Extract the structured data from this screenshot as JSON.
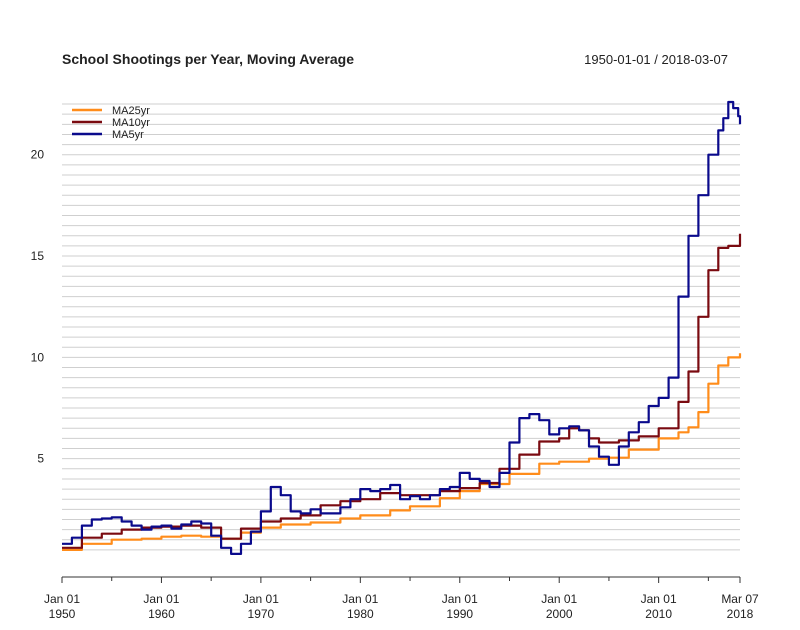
{
  "chart_data": {
    "type": "line",
    "title": "School Shootings per Year, Moving Average",
    "date_range": "1950-01-01 / 2018-03-07",
    "xlabel": "",
    "ylabel": "",
    "x_ticks": [
      {
        "year": 1950.0,
        "line1": "Jan 01",
        "line2": "1950"
      },
      {
        "year": 1960.0,
        "line1": "Jan 01",
        "line2": "1960"
      },
      {
        "year": 1970.0,
        "line1": "Jan 01",
        "line2": "1970"
      },
      {
        "year": 1980.0,
        "line1": "Jan 01",
        "line2": "1980"
      },
      {
        "year": 1990.0,
        "line1": "Jan 01",
        "line2": "1990"
      },
      {
        "year": 2000.0,
        "line1": "Jan 01",
        "line2": "2000"
      },
      {
        "year": 2010.0,
        "line1": "Jan 01",
        "line2": "2010"
      },
      {
        "year": 2018.18,
        "line1": "Mar 07",
        "line2": "2018"
      }
    ],
    "x_minor_ticks": [
      1955,
      1965,
      1975,
      1985,
      1995,
      2005,
      2015
    ],
    "y_ticks": [
      5,
      10,
      15,
      20
    ],
    "xlim": [
      1950.0,
      2018.18
    ],
    "ylim": [
      0.0,
      22.7
    ],
    "grid": true,
    "legend_position": "top-left",
    "series": [
      {
        "name": "MA25yr",
        "color": "#ff8c1a",
        "x": [
          1950.0,
          1952.0,
          1955.0,
          1958.0,
          1960.0,
          1962.0,
          1964.0,
          1966.0,
          1968.0,
          1970.0,
          1972.0,
          1975.0,
          1978.0,
          1980.0,
          1983.0,
          1985.0,
          1988.0,
          1990.0,
          1992.0,
          1995.0,
          1998.0,
          2000.0,
          2003.0,
          2005.0,
          2007.0,
          2010.0,
          2012.0,
          2013.0,
          2014.0,
          2015.0,
          2016.0,
          2017.0,
          2018.18
        ],
        "values": [
          0.5,
          0.8,
          1.0,
          1.05,
          1.15,
          1.2,
          1.15,
          1.05,
          1.35,
          1.6,
          1.75,
          1.85,
          2.05,
          2.2,
          2.45,
          2.65,
          3.05,
          3.4,
          3.75,
          4.25,
          4.75,
          4.85,
          5.0,
          5.05,
          5.45,
          6.0,
          6.3,
          6.55,
          7.3,
          8.7,
          9.6,
          10.0,
          10.2
        ]
      },
      {
        "name": "MA10yr",
        "color": "#7a0a10",
        "x": [
          1950.0,
          1952.0,
          1954.0,
          1956.0,
          1958.0,
          1960.0,
          1962.0,
          1964.0,
          1966.0,
          1968.0,
          1970.0,
          1972.0,
          1974.0,
          1976.0,
          1978.0,
          1980.0,
          1982.0,
          1984.0,
          1986.0,
          1988.0,
          1990.0,
          1992.0,
          1994.0,
          1996.0,
          1998.0,
          2000.0,
          2001.0,
          2002.0,
          2003.0,
          2004.0,
          2006.0,
          2008.0,
          2010.0,
          2012.0,
          2013.0,
          2014.0,
          2015.0,
          2016.0,
          2017.0,
          2018.18
        ],
        "values": [
          0.6,
          1.1,
          1.3,
          1.5,
          1.6,
          1.65,
          1.7,
          1.6,
          1.05,
          1.55,
          1.9,
          2.05,
          2.2,
          2.7,
          2.9,
          3.0,
          3.3,
          3.2,
          3.2,
          3.4,
          3.55,
          3.8,
          4.5,
          5.2,
          5.85,
          6.0,
          6.5,
          6.4,
          6.0,
          5.8,
          5.9,
          6.1,
          6.5,
          7.8,
          9.3,
          12.0,
          14.3,
          15.4,
          15.5,
          16.1
        ]
      },
      {
        "name": "MA5yr",
        "color": "#0a0a8c",
        "x": [
          1950.0,
          1951.0,
          1952.0,
          1953.0,
          1954.0,
          1955.0,
          1956.0,
          1957.0,
          1958.0,
          1959.0,
          1960.0,
          1961.0,
          1962.0,
          1963.0,
          1964.0,
          1965.0,
          1966.0,
          1967.0,
          1968.0,
          1969.0,
          1970.0,
          1971.0,
          1972.0,
          1973.0,
          1974.0,
          1975.0,
          1976.0,
          1977.0,
          1978.0,
          1979.0,
          1980.0,
          1981.0,
          1982.0,
          1983.0,
          1984.0,
          1985.0,
          1986.0,
          1987.0,
          1988.0,
          1989.0,
          1990.0,
          1991.0,
          1992.0,
          1993.0,
          1994.0,
          1995.0,
          1996.0,
          1997.0,
          1998.0,
          1999.0,
          2000.0,
          2001.0,
          2002.0,
          2003.0,
          2004.0,
          2005.0,
          2006.0,
          2007.0,
          2008.0,
          2009.0,
          2010.0,
          2011.0,
          2012.0,
          2013.0,
          2014.0,
          2015.0,
          2016.0,
          2016.5,
          2017.0,
          2017.5,
          2018.0,
          2018.18
        ],
        "values": [
          0.8,
          1.1,
          1.7,
          2.0,
          2.05,
          2.1,
          1.9,
          1.7,
          1.5,
          1.65,
          1.7,
          1.55,
          1.75,
          1.9,
          1.8,
          1.2,
          0.6,
          0.3,
          0.8,
          1.4,
          2.4,
          3.6,
          3.2,
          2.4,
          2.3,
          2.5,
          2.3,
          2.3,
          2.6,
          3.0,
          3.5,
          3.4,
          3.5,
          3.7,
          3.0,
          3.15,
          3.0,
          3.2,
          3.5,
          3.6,
          4.3,
          4.0,
          3.9,
          3.6,
          4.3,
          5.8,
          7.0,
          7.2,
          6.9,
          6.2,
          6.5,
          6.6,
          6.4,
          5.6,
          5.1,
          4.7,
          5.6,
          6.3,
          6.8,
          7.6,
          8.0,
          9.0,
          13.0,
          16.0,
          18.0,
          20.0,
          21.2,
          21.8,
          22.6,
          22.3,
          21.9,
          21.5
        ]
      }
    ]
  }
}
